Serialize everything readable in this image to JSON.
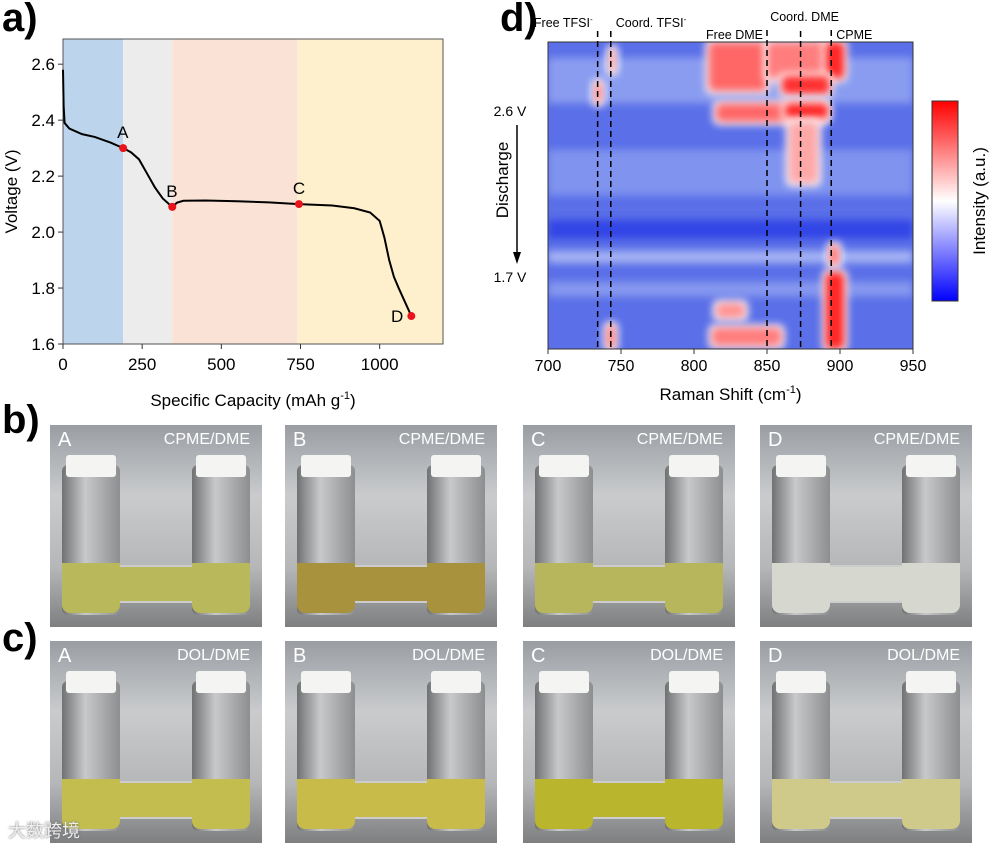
{
  "panels": {
    "a": "a)",
    "b": "b)",
    "c": "c)",
    "d": "d)"
  },
  "chart_data": [
    {
      "type": "line",
      "xlabel": "Specific Capacity (mAh g",
      "xlabel_sup": "-1",
      "xlabel_end": ")",
      "ylabel": "Voltage (V)",
      "xlim": [
        0,
        1200
      ],
      "ylim": [
        1.6,
        2.69
      ],
      "xticks": [
        "0",
        "250",
        "500",
        "750",
        "1000"
      ],
      "xtick_values": [
        0,
        250,
        500,
        750,
        1000
      ],
      "yticks": [
        "1.6",
        "1.8",
        "2.0",
        "2.2",
        "2.4",
        "2.6"
      ],
      "ytick_values": [
        1.6,
        1.8,
        2.0,
        2.2,
        2.4,
        2.6
      ],
      "regions": [
        {
          "from": 0,
          "to": 190,
          "color": "#bcd5ec"
        },
        {
          "from": 190,
          "to": 345,
          "color": "#ececec"
        },
        {
          "from": 345,
          "to": 740,
          "color": "#fbe2d6"
        },
        {
          "from": 740,
          "to": 1200,
          "color": "#fef0cc"
        }
      ],
      "series": [
        {
          "name": "discharge",
          "color": "#000000",
          "x": [
            0,
            2,
            5,
            20,
            60,
            100,
            150,
            190,
            215,
            240,
            265,
            290,
            315,
            335,
            345,
            360,
            380,
            450,
            550,
            650,
            745,
            850,
            920,
            970,
            1000,
            1015,
            1030,
            1045,
            1060,
            1080,
            1100
          ],
          "y": [
            2.58,
            2.45,
            2.39,
            2.37,
            2.35,
            2.34,
            2.32,
            2.3,
            2.285,
            2.26,
            2.21,
            2.16,
            2.12,
            2.1,
            2.09,
            2.105,
            2.112,
            2.113,
            2.11,
            2.106,
            2.1,
            2.095,
            2.085,
            2.07,
            2.04,
            1.98,
            1.9,
            1.84,
            1.8,
            1.75,
            1.7
          ]
        }
      ],
      "markers": [
        {
          "label": "A",
          "x": 190,
          "y": 2.3,
          "color": "#e8141a"
        },
        {
          "label": "B",
          "x": 345,
          "y": 2.09,
          "color": "#e8141a"
        },
        {
          "label": "C",
          "x": 745,
          "y": 2.1,
          "color": "#e8141a"
        },
        {
          "label": "D",
          "x": 1100,
          "y": 1.7,
          "color": "#e8141a"
        }
      ]
    },
    {
      "type": "heatmap",
      "xlabel": "Raman Shift (cm",
      "xlabel_sup": "-1",
      "xlabel_end": ")",
      "ylabel": "Discharge",
      "y_start": "2.6 V",
      "y_end": "1.7 V",
      "xlim": [
        700,
        950
      ],
      "xticks": [
        "700",
        "750",
        "800",
        "850",
        "900",
        "950"
      ],
      "xtick_values": [
        700,
        750,
        800,
        850,
        900,
        950
      ],
      "colorbar_label": "Intensity (a.u.)",
      "colormap": [
        "#0000ff",
        "#ffffff",
        "#ff0000"
      ],
      "peak_lines": [
        {
          "label": "Free TFSI",
          "sup": "-",
          "x": 734
        },
        {
          "label": "Coord. TFSI",
          "sup": "-",
          "x": 743
        },
        {
          "label": "Free DME",
          "x": 850
        },
        {
          "label": "Coord. DME",
          "x": 873
        },
        {
          "label": "CPME",
          "x": 894
        }
      ],
      "hotspots": [
        {
          "x": [
            810,
            850
          ],
          "t": [
            0,
            0.16
          ],
          "i": 0.7
        },
        {
          "x": [
            850,
            895
          ],
          "t": [
            0,
            0.12
          ],
          "i": 0.6
        },
        {
          "x": [
            890,
            903
          ],
          "t": [
            0,
            0.12
          ],
          "i": 1.0
        },
        {
          "x": [
            860,
            893
          ],
          "t": [
            0.11,
            0.17
          ],
          "i": 0.95
        },
        {
          "x": [
            815,
            890
          ],
          "t": [
            0.2,
            0.26
          ],
          "i": 0.7
        },
        {
          "x": [
            862,
            892
          ],
          "t": [
            0.2,
            0.25
          ],
          "i": 1.0
        },
        {
          "x": [
            865,
            885
          ],
          "t": [
            0.26,
            0.46
          ],
          "i": 0.4
        },
        {
          "x": [
            742,
            746
          ],
          "t": [
            0.02,
            0.1
          ],
          "i": 0.5
        },
        {
          "x": [
            732,
            737
          ],
          "t": [
            0.13,
            0.2
          ],
          "i": 0.6
        },
        {
          "x": [
            893,
            899
          ],
          "t": [
            0.66,
            0.73
          ],
          "i": 0.7
        },
        {
          "x": [
            890,
            903
          ],
          "t": [
            0.75,
            1
          ],
          "i": 1.0
        },
        {
          "x": [
            815,
            835
          ],
          "t": [
            0.85,
            0.9
          ],
          "i": 0.5
        },
        {
          "x": [
            812,
            860
          ],
          "t": [
            0.93,
            0.99
          ],
          "i": 0.6
        },
        {
          "x": [
            740,
            746
          ],
          "t": [
            0.92,
            1
          ],
          "i": 0.6
        }
      ]
    }
  ],
  "photos": {
    "row_b": [
      {
        "label": "A",
        "solvent": "CPME/DME",
        "liquid": "#b9b85a"
      },
      {
        "label": "B",
        "solvent": "CPME/DME",
        "liquid": "#a8923e"
      },
      {
        "label": "C",
        "solvent": "CPME/DME",
        "liquid": "#b8b65c"
      },
      {
        "label": "D",
        "solvent": "CPME/DME",
        "liquid": "#d6d8cf"
      }
    ],
    "row_c": [
      {
        "label": "A",
        "solvent": "DOL/DME",
        "liquid": "#c2bd4e"
      },
      {
        "label": "B",
        "solvent": "DOL/DME",
        "liquid": "#c9bb4a"
      },
      {
        "label": "C",
        "solvent": "DOL/DME",
        "liquid": "#b9b62e"
      },
      {
        "label": "D",
        "solvent": "DOL/DME",
        "liquid": "#cfc98a"
      }
    ]
  },
  "watermark": "大数跨境"
}
